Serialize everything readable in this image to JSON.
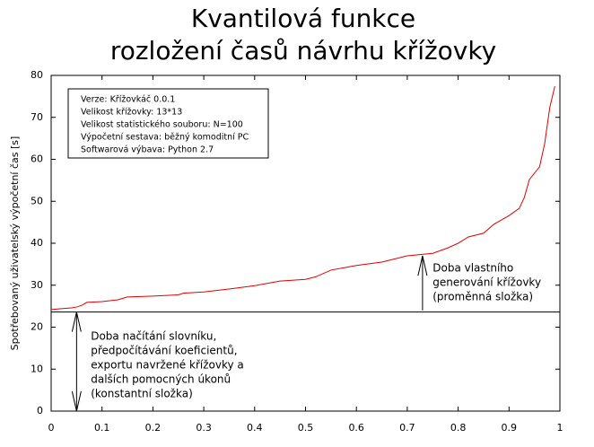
{
  "chart_data": {
    "type": "line",
    "title": [
      "Kvantilová funkce",
      "rozložení časů návrhu křížovky"
    ],
    "ylabel": "Spotřebovaný uživatelský výpočetní čas [s]",
    "x": [
      0,
      0.02,
      0.04,
      0.05,
      0.06,
      0.07,
      0.1,
      0.13,
      0.15,
      0.2,
      0.25,
      0.26,
      0.3,
      0.35,
      0.4,
      0.45,
      0.5,
      0.52,
      0.55,
      0.6,
      0.65,
      0.7,
      0.75,
      0.78,
      0.8,
      0.82,
      0.85,
      0.87,
      0.9,
      0.92,
      0.93,
      0.94,
      0.96,
      0.97,
      0.98,
      0.99
    ],
    "series": [
      {
        "color": "#e00000",
        "values": [
          24.2,
          24.4,
          24.6,
          24.8,
          25.2,
          25.9,
          26.1,
          26.5,
          27.2,
          27.4,
          27.7,
          28.1,
          28.4,
          29.1,
          29.9,
          31,
          31.4,
          32,
          33.6,
          34.7,
          35.5,
          37,
          37.6,
          38.9,
          40,
          41.5,
          42.4,
          44.5,
          46.6,
          48.3,
          50.9,
          55.2,
          58.2,
          63.7,
          72.3,
          77.4
        ]
      }
    ],
    "xlim": [
      0,
      1
    ],
    "xticks": [
      0,
      0.1,
      0.2,
      0.3,
      0.4,
      0.5,
      0.6,
      0.7,
      0.8,
      0.9,
      1
    ],
    "ylim": [
      0,
      80
    ],
    "yticks": [
      0,
      10,
      20,
      30,
      40,
      50,
      60,
      70,
      80
    ],
    "hline": 23.6,
    "arrows": [
      {
        "x": 0.05,
        "y_from": 0,
        "y_to": 23.6,
        "heads": "both"
      },
      {
        "x": 0.73,
        "y_from": 24,
        "y_to": 37
      }
    ],
    "info_box": [
      "Verze: Křížovkáč 0.0.1",
      "Velikost křížovky: 13*13",
      "Velikost statistického souboru: N=100",
      "Výpočetní sestava: běžný komoditní PC",
      "Softwarová výbava: Python 2.7"
    ],
    "annotations": [
      {
        "x": 0.75,
        "y": 34,
        "lines": [
          "Doba vlastního",
          "generování křížovky",
          "(proměnná složka)"
        ]
      },
      {
        "x": 0.078,
        "y": 17.8,
        "lines": [
          "Doba načítání slovníku,",
          "předpočítávání koeficientů,",
          "exportu navržené křížovky a",
          "dalších pomocných úkonů",
          "(konstantní složka)"
        ]
      }
    ]
  }
}
